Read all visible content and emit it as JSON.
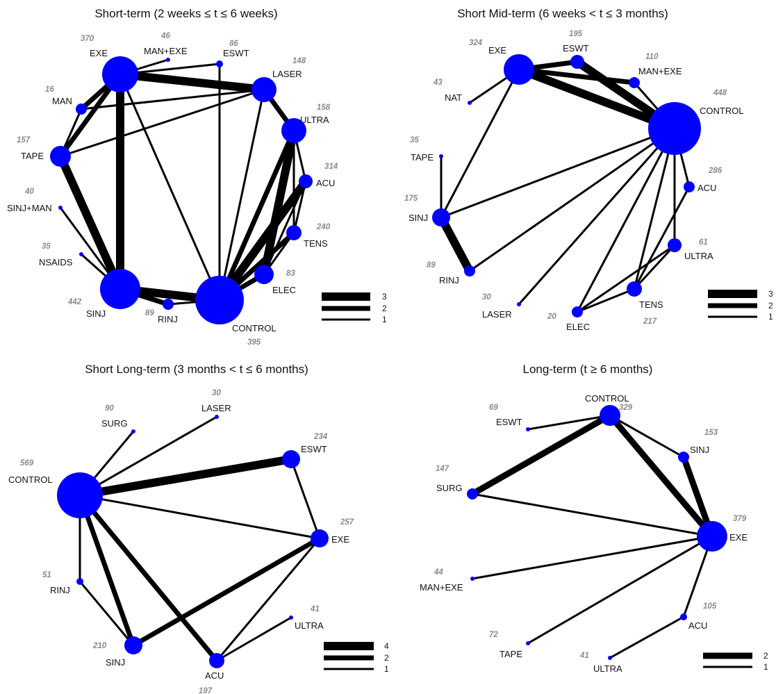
{
  "panels": [
    {
      "title": "Short-term (2 weeks ≤ t ≤ 6 weeks)",
      "nodes": [
        {
          "id": "EXE",
          "label": "EXE",
          "count": "370"
        },
        {
          "id": "MAN+EXE",
          "label": "MAN+EXE",
          "count": "46"
        },
        {
          "id": "ESWT",
          "label": "ESWT",
          "count": "86"
        },
        {
          "id": "LASER",
          "label": "LASER",
          "count": "148"
        },
        {
          "id": "MAN",
          "label": "MAN",
          "count": "16"
        },
        {
          "id": "ULTRA",
          "label": "ULTRA",
          "count": "158"
        },
        {
          "id": "TAPE",
          "label": "TAPE",
          "count": "157"
        },
        {
          "id": "ACU",
          "label": "ACU",
          "count": "314"
        },
        {
          "id": "SINJ+MAN",
          "label": "SINJ+MAN",
          "count": "40"
        },
        {
          "id": "TENS",
          "label": "TENS",
          "count": "240"
        },
        {
          "id": "NSAIDS",
          "label": "NSAIDS",
          "count": "35"
        },
        {
          "id": "ELEC",
          "label": "ELEC",
          "count": "83"
        },
        {
          "id": "SINJ",
          "label": "SINJ",
          "count": "442"
        },
        {
          "id": "RINJ",
          "label": "RINJ",
          "count": "89"
        },
        {
          "id": "CONTROL",
          "label": "CONTROL",
          "count": "395"
        }
      ],
      "edges": [
        {
          "source": "EXE",
          "target": "MAN+EXE",
          "studies": 1
        },
        {
          "source": "EXE",
          "target": "ESWT",
          "studies": 1
        },
        {
          "source": "EXE",
          "target": "LASER",
          "studies": 3
        },
        {
          "source": "EXE",
          "target": "MAN",
          "studies": 2
        },
        {
          "source": "EXE",
          "target": "TAPE",
          "studies": 2
        },
        {
          "source": "EXE",
          "target": "SINJ",
          "studies": 3
        },
        {
          "source": "EXE",
          "target": "CONTROL",
          "studies": 1
        },
        {
          "source": "MAN",
          "target": "LASER",
          "studies": 1
        },
        {
          "source": "MAN",
          "target": "TAPE",
          "studies": 1
        },
        {
          "source": "TAPE",
          "target": "LASER",
          "studies": 1
        },
        {
          "source": "TAPE",
          "target": "SINJ",
          "studies": 3
        },
        {
          "source": "ESWT",
          "target": "CONTROL",
          "studies": 1
        },
        {
          "source": "LASER",
          "target": "ULTRA",
          "studies": 2
        },
        {
          "source": "LASER",
          "target": "CONTROL",
          "studies": 1
        },
        {
          "source": "ULTRA",
          "target": "ACU",
          "studies": 1
        },
        {
          "source": "ULTRA",
          "target": "TENS",
          "studies": 1
        },
        {
          "source": "ULTRA",
          "target": "ELEC",
          "studies": 3
        },
        {
          "source": "ULTRA",
          "target": "CONTROL",
          "studies": 2
        },
        {
          "source": "ACU",
          "target": "TENS",
          "studies": 1
        },
        {
          "source": "ACU",
          "target": "ELEC",
          "studies": 1
        },
        {
          "source": "ACU",
          "target": "CONTROL",
          "studies": 3
        },
        {
          "source": "TENS",
          "target": "ELEC",
          "studies": 1
        },
        {
          "source": "TENS",
          "target": "CONTROL",
          "studies": 2
        },
        {
          "source": "ELEC",
          "target": "CONTROL",
          "studies": 2
        },
        {
          "source": "SINJ+MAN",
          "target": "SINJ",
          "studies": 1
        },
        {
          "source": "NSAIDS",
          "target": "SINJ",
          "studies": 1
        },
        {
          "source": "SINJ",
          "target": "RINJ",
          "studies": 2
        },
        {
          "source": "SINJ",
          "target": "CONTROL",
          "studies": 3
        },
        {
          "source": "RINJ",
          "target": "CONTROL",
          "studies": 1
        }
      ],
      "legend": [
        "3",
        "2",
        "1"
      ]
    },
    {
      "title": "Short Mid-term (6 weeks < t ≤ 3 months)",
      "nodes": [
        {
          "id": "EXE",
          "label": "EXE",
          "count": "324"
        },
        {
          "id": "ESWT",
          "label": "ESWT",
          "count": "195"
        },
        {
          "id": "MAN+EXE",
          "label": "MAN+EXE",
          "count": "110"
        },
        {
          "id": "NAT",
          "label": "NAT",
          "count": "43"
        },
        {
          "id": "CONTROL",
          "label": "CONTROL",
          "count": "448"
        },
        {
          "id": "TAPE",
          "label": "TAPE",
          "count": "35"
        },
        {
          "id": "ACU",
          "label": "ACU",
          "count": "286"
        },
        {
          "id": "SINJ",
          "label": "SINJ",
          "count": "175"
        },
        {
          "id": "ULTRA",
          "label": "ULTRA",
          "count": "61"
        },
        {
          "id": "RINJ",
          "label": "RINJ",
          "count": "89"
        },
        {
          "id": "LASER",
          "label": "LASER",
          "count": "30"
        },
        {
          "id": "TENS",
          "label": "TENS",
          "count": "217"
        },
        {
          "id": "ELEC",
          "label": "ELEC",
          "count": "20"
        }
      ],
      "edges": [
        {
          "source": "EXE",
          "target": "ESWT",
          "studies": 2
        },
        {
          "source": "EXE",
          "target": "MAN+EXE",
          "studies": 2
        },
        {
          "source": "EXE",
          "target": "CONTROL",
          "studies": 3
        },
        {
          "source": "EXE",
          "target": "NAT",
          "studies": 1
        },
        {
          "source": "EXE",
          "target": "SINJ",
          "studies": 1
        },
        {
          "source": "ESWT",
          "target": "CONTROL",
          "studies": 3
        },
        {
          "source": "MAN+EXE",
          "target": "CONTROL",
          "studies": 1
        },
        {
          "source": "TAPE",
          "target": "SINJ",
          "studies": 1
        },
        {
          "source": "SINJ",
          "target": "CONTROL",
          "studies": 1
        },
        {
          "source": "SINJ",
          "target": "RINJ",
          "studies": 3
        },
        {
          "source": "RINJ",
          "target": "CONTROL",
          "studies": 1
        },
        {
          "source": "LASER",
          "target": "CONTROL",
          "studies": 1
        },
        {
          "source": "ACU",
          "target": "CONTROL",
          "studies": 1
        },
        {
          "source": "ACU",
          "target": "TENS",
          "studies": 1
        },
        {
          "source": "ULTRA",
          "target": "CONTROL",
          "studies": 1
        },
        {
          "source": "ULTRA",
          "target": "TENS",
          "studies": 1
        },
        {
          "source": "ULTRA",
          "target": "ELEC",
          "studies": 1
        },
        {
          "source": "TENS",
          "target": "CONTROL",
          "studies": 1
        },
        {
          "source": "TENS",
          "target": "ELEC",
          "studies": 1
        },
        {
          "source": "ELEC",
          "target": "CONTROL",
          "studies": 1
        }
      ],
      "legend": [
        "3",
        "2",
        "1"
      ]
    },
    {
      "title": "Short Long-term (3 months < t ≤ 6 months)",
      "nodes": [
        {
          "id": "SURG",
          "label": "SURG",
          "count": "90"
        },
        {
          "id": "LASER",
          "label": "LASER",
          "count": "30"
        },
        {
          "id": "ESWT",
          "label": "ESWT",
          "count": "234"
        },
        {
          "id": "CONTROL",
          "label": "CONTROL",
          "count": "569"
        },
        {
          "id": "EXE",
          "label": "EXE",
          "count": "257"
        },
        {
          "id": "RINJ",
          "label": "RINJ",
          "count": "51"
        },
        {
          "id": "ULTRA",
          "label": "ULTRA",
          "count": "41"
        },
        {
          "id": "SINJ",
          "label": "SINJ",
          "count": "210"
        },
        {
          "id": "ACU",
          "label": "ACU",
          "count": "197"
        }
      ],
      "edges": [
        {
          "source": "CONTROL",
          "target": "SURG",
          "studies": 1
        },
        {
          "source": "CONTROL",
          "target": "LASER",
          "studies": 1
        },
        {
          "source": "CONTROL",
          "target": "ESWT",
          "studies": 4
        },
        {
          "source": "CONTROL",
          "target": "EXE",
          "studies": 1
        },
        {
          "source": "CONTROL",
          "target": "RINJ",
          "studies": 1
        },
        {
          "source": "CONTROL",
          "target": "SINJ",
          "studies": 2
        },
        {
          "source": "CONTROL",
          "target": "ACU",
          "studies": 2
        },
        {
          "source": "ESWT",
          "target": "EXE",
          "studies": 1
        },
        {
          "source": "EXE",
          "target": "SINJ",
          "studies": 2
        },
        {
          "source": "EXE",
          "target": "ACU",
          "studies": 1
        },
        {
          "source": "RINJ",
          "target": "SINJ",
          "studies": 1
        },
        {
          "source": "ACU",
          "target": "ULTRA",
          "studies": 1
        }
      ],
      "legend": [
        "4",
        "2",
        "1"
      ]
    },
    {
      "title": "Long-term (t ≥ 6 months)",
      "nodes": [
        {
          "id": "ESWT",
          "label": "ESWT",
          "count": "69"
        },
        {
          "id": "CONTROL",
          "label": "CONTROL",
          "count": "329"
        },
        {
          "id": "SINJ",
          "label": "SINJ",
          "count": "153"
        },
        {
          "id": "SURG",
          "label": "SURG",
          "count": "147"
        },
        {
          "id": "EXE",
          "label": "EXE",
          "count": "379"
        },
        {
          "id": "MAN+EXE",
          "label": "MAN+EXE",
          "count": "44"
        },
        {
          "id": "ACU",
          "label": "ACU",
          "count": "105"
        },
        {
          "id": "TAPE",
          "label": "TAPE",
          "count": "72"
        },
        {
          "id": "ULTRA",
          "label": "ULTRA",
          "count": "41"
        }
      ],
      "edges": [
        {
          "source": "ESWT",
          "target": "CONTROL",
          "studies": 1
        },
        {
          "source": "CONTROL",
          "target": "SURG",
          "studies": 2
        },
        {
          "source": "CONTROL",
          "target": "SINJ",
          "studies": 1
        },
        {
          "source": "CONTROL",
          "target": "EXE",
          "studies": 2
        },
        {
          "source": "SINJ",
          "target": "EXE",
          "studies": 2
        },
        {
          "source": "SURG",
          "target": "EXE",
          "studies": 1
        },
        {
          "source": "MAN+EXE",
          "target": "EXE",
          "studies": 1
        },
        {
          "source": "TAPE",
          "target": "EXE",
          "studies": 1
        },
        {
          "source": "ACU",
          "target": "EXE",
          "studies": 1
        },
        {
          "source": "ULTRA",
          "target": "ACU",
          "studies": 1
        }
      ],
      "legend": [
        "2",
        "1"
      ]
    }
  ],
  "colors": {
    "node": "#0000ff",
    "edge": "#000000",
    "count": "#8a8a8a"
  }
}
